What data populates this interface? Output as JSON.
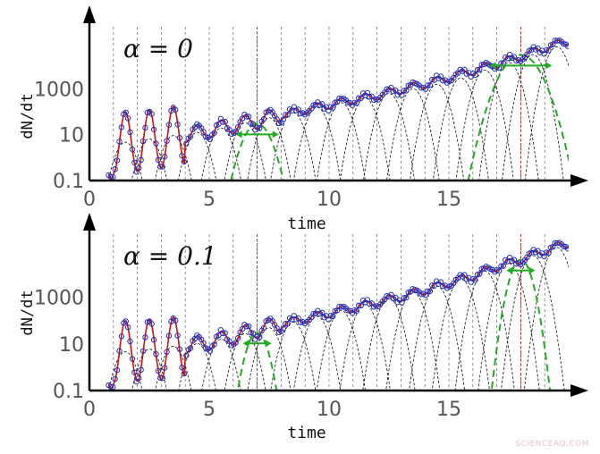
{
  "colors": {
    "envelope": "#cc1111",
    "points": "#2233bb",
    "component": "#111111",
    "gridline": "#777777",
    "marker_line": "#aa2222",
    "highlight": "#22aa22",
    "axis": "#000000",
    "tick_text": "#555555"
  },
  "watermark": "SCIENCEAQ.COM",
  "chart_data": [
    {
      "type": "line",
      "annotation": "α = 0",
      "xlabel": "time",
      "ylabel": "dN/dt",
      "xlim": [
        0,
        20
      ],
      "yscale": "log",
      "ylim": [
        0.1,
        500000
      ],
      "xticks": [
        0,
        5,
        10,
        15
      ],
      "xtick_labels": [
        "0",
        "5",
        "10",
        "15"
      ],
      "yticks": [
        0.1,
        10,
        1000
      ],
      "ytick_labels": [
        "0.1",
        "10",
        "1000"
      ],
      "cycle_period": 1,
      "cycle_starts": [
        1,
        2,
        3,
        4,
        5,
        6,
        7,
        8,
        9,
        10,
        11,
        12,
        13,
        14,
        15,
        16,
        17,
        18,
        19
      ],
      "marked_times": [
        7,
        18
      ],
      "envelope_samples": {
        "x": [
          0.8,
          1,
          1.5,
          2,
          3,
          4,
          5,
          6,
          7,
          8,
          9,
          10,
          11,
          12,
          13,
          14,
          15,
          16,
          17,
          18,
          19,
          20
        ],
        "y": [
          0.5,
          4,
          5,
          5,
          7,
          10,
          15,
          25,
          40,
          70,
          120,
          200,
          320,
          500,
          900,
          1600,
          3000,
          6000,
          12000,
          25000,
          60000,
          120000
        ]
      },
      "component_peak_envelope": {
        "x": [
          1,
          5,
          10,
          15,
          20
        ],
        "y": [
          4,
          15,
          200,
          2000,
          100000
        ]
      },
      "highlighted_components": [
        {
          "center": 7,
          "half_width_arrow": 0.9,
          "peak": 30
        },
        {
          "center": 18,
          "half_width_arrow": 1.3,
          "peak": 30000
        }
      ]
    },
    {
      "type": "line",
      "annotation": "α = 0.1",
      "xlabel": "time",
      "ylabel": "dN/dt",
      "xlim": [
        0,
        20
      ],
      "yscale": "log",
      "ylim": [
        0.1,
        500000
      ],
      "xticks": [
        0,
        5,
        10,
        15
      ],
      "xtick_labels": [
        "0",
        "5",
        "10",
        "15"
      ],
      "yticks": [
        0.1,
        10,
        1000
      ],
      "ytick_labels": [
        "0.1",
        "10",
        "1000"
      ],
      "cycle_period": 1,
      "cycle_starts": [
        1,
        2,
        3,
        4,
        5,
        6,
        7,
        8,
        9,
        10,
        11,
        12,
        13,
        14,
        15,
        16,
        17,
        18,
        19
      ],
      "marked_times": [
        7,
        18
      ],
      "envelope_samples": {
        "x": [
          0.8,
          1,
          1.5,
          2,
          3,
          4,
          5,
          6,
          7,
          8,
          9,
          10,
          11,
          12,
          13,
          14,
          15,
          16,
          17,
          18,
          19,
          20
        ],
        "y": [
          0.5,
          4,
          5,
          5,
          6,
          8,
          12,
          20,
          40,
          70,
          120,
          200,
          350,
          600,
          1000,
          2000,
          4000,
          8000,
          20000,
          40000,
          100000,
          200000
        ]
      },
      "component_peak_envelope": {
        "x": [
          1,
          5,
          10,
          15,
          20
        ],
        "y": [
          4,
          12,
          200,
          4000,
          200000
        ]
      },
      "highlighted_components": [
        {
          "center": 7,
          "half_width_arrow": 0.6,
          "peak": 30
        },
        {
          "center": 18,
          "half_width_arrow": 0.6,
          "peak": 40000
        }
      ]
    }
  ]
}
